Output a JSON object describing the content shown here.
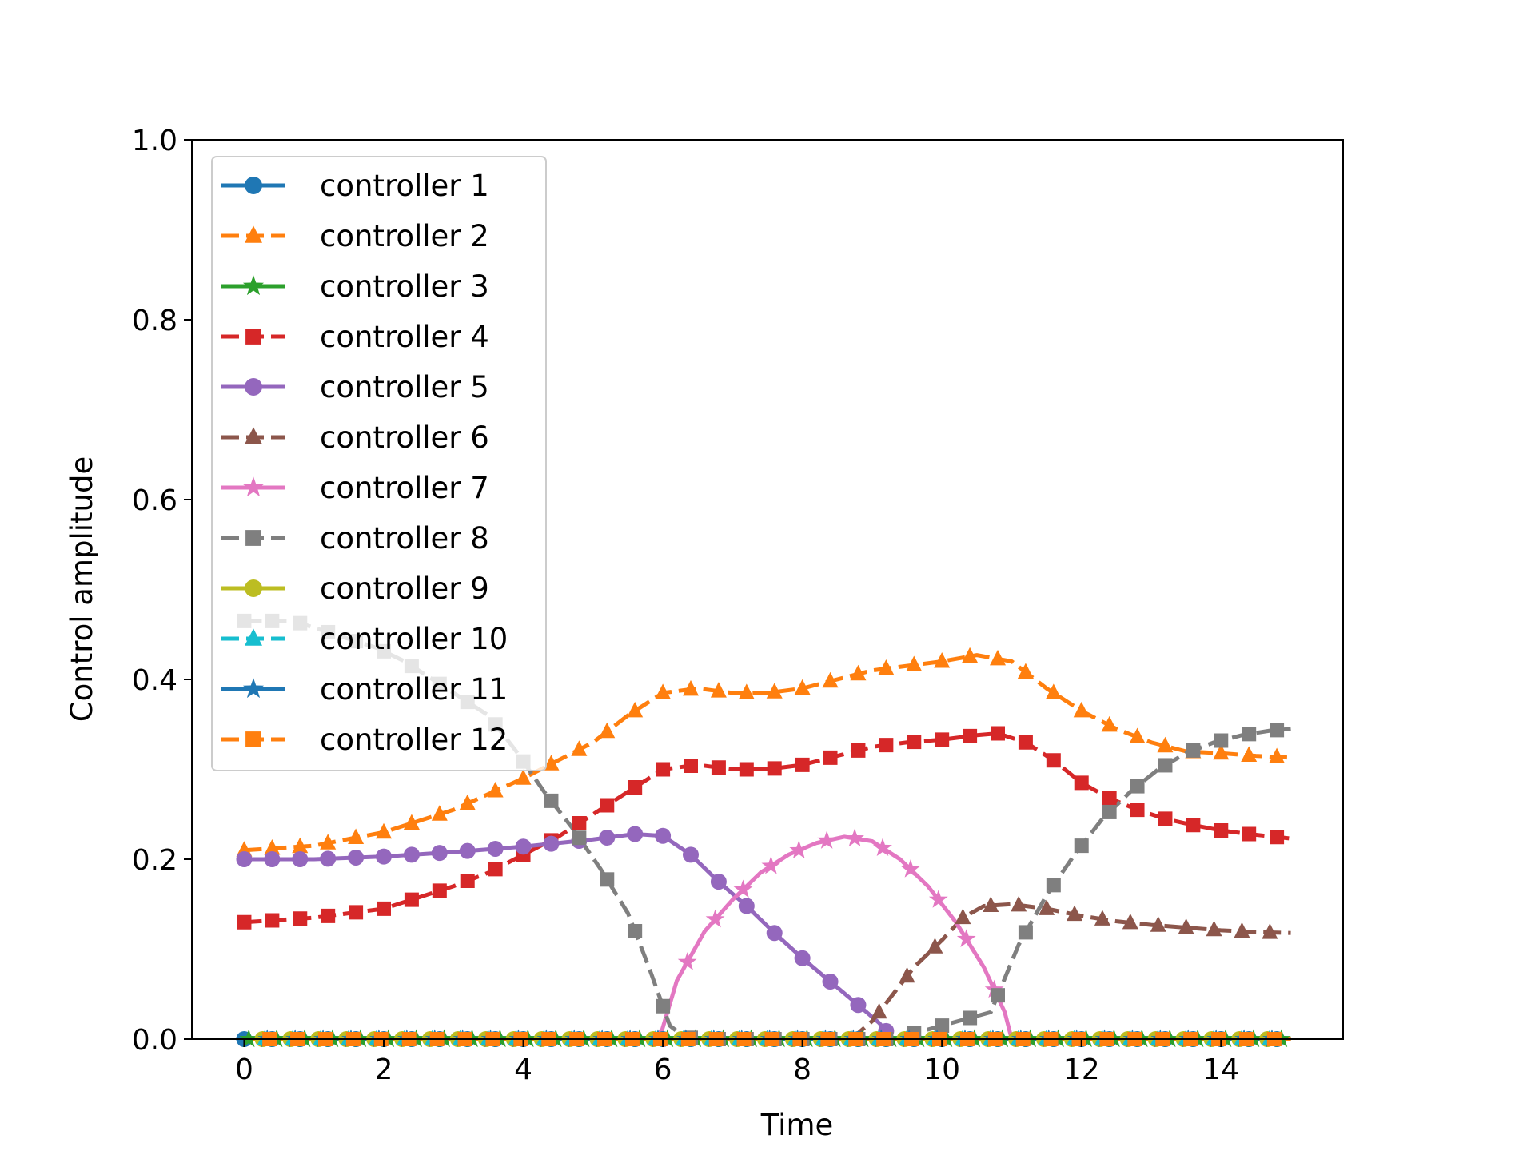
{
  "chart_data": {
    "type": "line",
    "title": "",
    "xlabel": "Time",
    "ylabel": "Control amplitude",
    "xlim": [
      -0.75,
      15.75
    ],
    "ylim": [
      0,
      1.0
    ],
    "xticks": [
      0,
      2,
      4,
      6,
      8,
      10,
      12,
      14
    ],
    "yticks": [
      0.0,
      0.2,
      0.4,
      0.6,
      0.8,
      1.0
    ],
    "xtick_labels": [
      "0",
      "2",
      "4",
      "6",
      "8",
      "10",
      "12",
      "14"
    ],
    "ytick_labels": [
      "0.0",
      "0.2",
      "0.4",
      "0.6",
      "0.8",
      "1.0"
    ],
    "grid": false,
    "legend_position": "upper-left",
    "series": [
      {
        "name": "controller 1",
        "color": "#1f77b4",
        "marker": "circle",
        "dash": "solid",
        "x": [
          0,
          15
        ],
        "y": [
          0,
          0
        ]
      },
      {
        "name": "controller 2",
        "color": "#ff7f0e",
        "marker": "triangle",
        "dash": "dashed",
        "x": [
          0,
          1,
          2,
          3,
          4,
          5,
          5.5,
          6,
          6.5,
          7,
          7.5,
          8,
          8.5,
          9,
          9.5,
          10,
          10.5,
          11,
          11.5,
          12,
          12.5,
          13,
          13.5,
          14,
          14.5,
          15
        ],
        "y": [
          0.21,
          0.215,
          0.23,
          0.255,
          0.29,
          0.33,
          0.36,
          0.385,
          0.39,
          0.385,
          0.385,
          0.39,
          0.4,
          0.41,
          0.415,
          0.42,
          0.427,
          0.42,
          0.39,
          0.365,
          0.345,
          0.33,
          0.32,
          0.318,
          0.315,
          0.313
        ]
      },
      {
        "name": "controller 3",
        "color": "#2ca02c",
        "marker": "star",
        "dash": "solid",
        "x": [
          0,
          15
        ],
        "y": [
          0,
          0
        ]
      },
      {
        "name": "controller 4",
        "color": "#d62728",
        "marker": "square",
        "dash": "dashed",
        "x": [
          0,
          1,
          2,
          3,
          3.5,
          4,
          4.5,
          5,
          5.5,
          6,
          6.5,
          7,
          7.5,
          8,
          8.5,
          9,
          9.5,
          10,
          10.5,
          10.8,
          11.2,
          11.6,
          12,
          12.4,
          12.8,
          13.2,
          13.6,
          14,
          14.4,
          15
        ],
        "y": [
          0.13,
          0.135,
          0.145,
          0.17,
          0.185,
          0.205,
          0.225,
          0.25,
          0.275,
          0.3,
          0.305,
          0.3,
          0.3,
          0.305,
          0.315,
          0.325,
          0.33,
          0.333,
          0.338,
          0.34,
          0.33,
          0.31,
          0.285,
          0.268,
          0.255,
          0.245,
          0.238,
          0.232,
          0.228,
          0.223
        ]
      },
      {
        "name": "controller 5",
        "color": "#9467bd",
        "marker": "circle",
        "dash": "solid",
        "x": [
          0,
          0.4,
          1,
          2,
          3,
          4,
          5,
          5.6,
          6.0,
          6.4,
          6.8,
          7.2,
          7.6,
          8.0,
          8.4,
          8.8,
          9.1,
          9.3
        ],
        "y": [
          0.2,
          0.2,
          0.2,
          0.203,
          0.208,
          0.214,
          0.222,
          0.228,
          0.226,
          0.205,
          0.175,
          0.148,
          0.118,
          0.09,
          0.064,
          0.038,
          0.018,
          0.0
        ]
      },
      {
        "name": "controller 6",
        "color": "#8c564b",
        "marker": "triangle",
        "dash": "dashed",
        "x": [
          8.7,
          9.0,
          9.3,
          9.6,
          10.0,
          10.3,
          10.6,
          11.0,
          11.5,
          12,
          12.5,
          13,
          13.5,
          14,
          14.5,
          15
        ],
        "y": [
          0.0,
          0.02,
          0.05,
          0.08,
          0.11,
          0.135,
          0.148,
          0.15,
          0.145,
          0.137,
          0.131,
          0.127,
          0.124,
          0.121,
          0.119,
          0.118
        ]
      },
      {
        "name": "controller 7",
        "color": "#e377c2",
        "marker": "star",
        "dash": "solid",
        "x": [
          5.95,
          6.2,
          6.6,
          7.0,
          7.4,
          7.8,
          8.2,
          8.6,
          9.0,
          9.4,
          9.8,
          10.2,
          10.6,
          10.9,
          11.0
        ],
        "y": [
          0.0,
          0.065,
          0.12,
          0.155,
          0.185,
          0.205,
          0.218,
          0.225,
          0.22,
          0.2,
          0.17,
          0.13,
          0.08,
          0.03,
          0.0
        ]
      },
      {
        "name": "controller 8",
        "color": "#7f7f7f",
        "marker": "square",
        "dash": "dashed",
        "x": [
          0,
          0.7,
          1.1,
          1.5,
          1.9,
          2.3,
          2.7,
          3.1,
          3.5,
          3.9,
          4.3,
          4.7,
          5.1,
          5.5,
          5.8,
          6.1,
          6.3,
          6.5,
          9.3,
          10.7,
          11.1,
          11.5,
          11.9,
          12.3,
          12.7,
          13.1,
          13.5,
          13.9,
          14.3,
          14.7,
          15
        ],
        "y": [
          0.465,
          0.465,
          0.455,
          0.445,
          0.435,
          0.42,
          0.4,
          0.38,
          0.36,
          0.32,
          0.275,
          0.235,
          0.19,
          0.14,
          0.08,
          0.015,
          0.003,
          0.0,
          0.0,
          0.03,
          0.105,
          0.16,
          0.205,
          0.245,
          0.275,
          0.3,
          0.318,
          0.33,
          0.338,
          0.343,
          0.345
        ]
      },
      {
        "name": "controller 9",
        "color": "#bcbd22",
        "marker": "circle",
        "dash": "solid",
        "x": [
          0,
          15
        ],
        "y": [
          0,
          0
        ]
      },
      {
        "name": "controller 10",
        "color": "#17becf",
        "marker": "triangle",
        "dash": "dashed",
        "x": [
          0,
          15
        ],
        "y": [
          0,
          0
        ]
      },
      {
        "name": "controller 11",
        "color": "#1f77b4",
        "marker": "star",
        "dash": "solid",
        "x": [
          0,
          15
        ],
        "y": [
          0,
          0
        ]
      },
      {
        "name": "controller 12",
        "color": "#ff7f0e",
        "marker": "square",
        "dash": "dashed",
        "x": [
          0,
          15
        ],
        "y": [
          0,
          0
        ]
      }
    ]
  }
}
